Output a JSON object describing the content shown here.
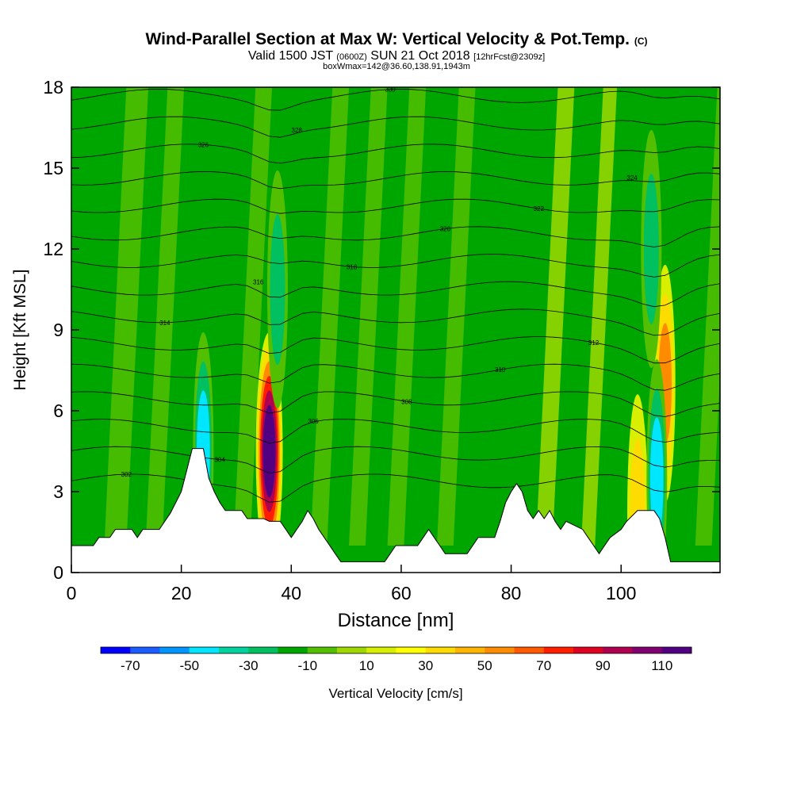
{
  "header": {
    "title_main": "Wind-Parallel Section at Max W: Vertical Velocity & Pot.Temp.",
    "title_copyright": "(C)",
    "valid_pre": "Valid 1500 JST",
    "valid_zulu": "(0600Z)",
    "valid_date": "SUN 21 Oct 2018",
    "valid_fcst": "[12hrFcst@2309z]",
    "box_info": "boxWmax=142@36.60,138.91,1943m"
  },
  "chart_data": {
    "type": "heatmap",
    "xlabel": "Distance [nm]",
    "ylabel": "Height [Kft MSL]",
    "xlim": [
      0,
      118
    ],
    "ylim": [
      0,
      18
    ],
    "x_ticks": [
      "0",
      "20",
      "40",
      "60",
      "80",
      "100"
    ],
    "y_ticks": [
      "0",
      "3",
      "6",
      "9",
      "12",
      "15",
      "18"
    ],
    "x_tick_values": [
      0,
      20,
      40,
      60,
      80,
      100
    ],
    "y_tick_values": [
      0,
      3,
      6,
      9,
      12,
      15,
      18
    ],
    "colorbar": {
      "label": "Vertical Velocity [cm/s]",
      "tick_labels": [
        "-70",
        "-50",
        "-30",
        "-10",
        "10",
        "30",
        "50",
        "70",
        "90",
        "110"
      ],
      "colors": [
        "#0000ff",
        "#1a5cff",
        "#0096ff",
        "#00e6ff",
        "#00d2a0",
        "#00c060",
        "#00a600",
        "#52c000",
        "#9ed800",
        "#d8f000",
        "#ffff00",
        "#ffdc00",
        "#ffb400",
        "#ff8c00",
        "#ff5a00",
        "#ff1e00",
        "#e00020",
        "#b00050",
        "#800070",
        "#500080"
      ]
    },
    "terrain": [
      [
        0,
        1.0
      ],
      [
        4,
        1.0
      ],
      [
        5,
        1.3
      ],
      [
        7,
        1.3
      ],
      [
        8,
        1.6
      ],
      [
        11,
        1.6
      ],
      [
        12,
        1.3
      ],
      [
        13,
        1.6
      ],
      [
        16,
        1.6
      ],
      [
        17,
        1.9
      ],
      [
        18,
        2.2
      ],
      [
        19,
        2.6
      ],
      [
        20,
        3.0
      ],
      [
        21,
        3.8
      ],
      [
        22,
        4.6
      ],
      [
        24,
        4.6
      ],
      [
        25,
        3.5
      ],
      [
        26,
        3.0
      ],
      [
        27,
        2.6
      ],
      [
        28,
        2.3
      ],
      [
        31,
        2.3
      ],
      [
        32,
        2.0
      ],
      [
        35,
        2.0
      ],
      [
        36,
        1.9
      ],
      [
        38,
        1.9
      ],
      [
        39,
        1.6
      ],
      [
        40,
        1.3
      ],
      [
        41,
        1.6
      ],
      [
        42,
        1.9
      ],
      [
        43,
        2.3
      ],
      [
        44,
        2.0
      ],
      [
        45,
        1.6
      ],
      [
        46,
        1.3
      ],
      [
        47,
        1.0
      ],
      [
        48,
        0.7
      ],
      [
        49,
        0.4
      ],
      [
        53,
        0.4
      ],
      [
        57,
        0.4
      ],
      [
        58,
        0.7
      ],
      [
        59,
        1.0
      ],
      [
        63,
        1.0
      ],
      [
        64,
        1.3
      ],
      [
        65,
        1.6
      ],
      [
        66,
        1.3
      ],
      [
        67,
        1.0
      ],
      [
        68,
        0.7
      ],
      [
        72,
        0.7
      ],
      [
        73,
        1.0
      ],
      [
        74,
        1.3
      ],
      [
        77,
        1.3
      ],
      [
        78,
        1.9
      ],
      [
        79,
        2.6
      ],
      [
        80,
        3.0
      ],
      [
        81,
        3.3
      ],
      [
        82,
        3.0
      ],
      [
        83,
        2.3
      ],
      [
        84,
        2.0
      ],
      [
        85,
        2.3
      ],
      [
        86,
        2.0
      ],
      [
        87,
        2.3
      ],
      [
        88,
        1.9
      ],
      [
        89,
        1.6
      ],
      [
        90,
        1.9
      ],
      [
        93,
        1.6
      ],
      [
        94,
        1.3
      ],
      [
        95,
        1.0
      ],
      [
        96,
        0.7
      ],
      [
        97,
        1.0
      ],
      [
        98,
        1.3
      ],
      [
        100,
        1.6
      ],
      [
        101,
        1.9
      ],
      [
        103,
        2.3
      ],
      [
        106,
        2.3
      ],
      [
        107,
        2.0
      ],
      [
        108,
        1.3
      ],
      [
        109,
        0.4
      ],
      [
        118,
        0.4
      ]
    ],
    "features": [
      {
        "kind": "updraft",
        "x": 36.0,
        "z": 4.5,
        "w": 110
      },
      {
        "kind": "updraft",
        "x": 108.0,
        "z": 7.0,
        "w": 50
      },
      {
        "kind": "updraft",
        "x": 103.0,
        "z": 2.2,
        "w": 40
      },
      {
        "kind": "downdraft",
        "x": 24.0,
        "z": 4.5,
        "w": -55
      },
      {
        "kind": "downdraft",
        "x": 106.5,
        "z": 3.5,
        "w": -60
      },
      {
        "kind": "downdraft",
        "x": 37.5,
        "z": 10.5,
        "w": -35
      },
      {
        "kind": "downdraft",
        "x": 105.5,
        "z": 12.0,
        "w": -35
      }
    ],
    "theta_contour_labels": [
      "302",
      "304",
      "306",
      "308",
      "310",
      "312",
      "314",
      "316",
      "318",
      "320",
      "322",
      "324",
      "326",
      "328",
      "330"
    ],
    "grid": false,
    "legend": "bottom colorbar"
  }
}
